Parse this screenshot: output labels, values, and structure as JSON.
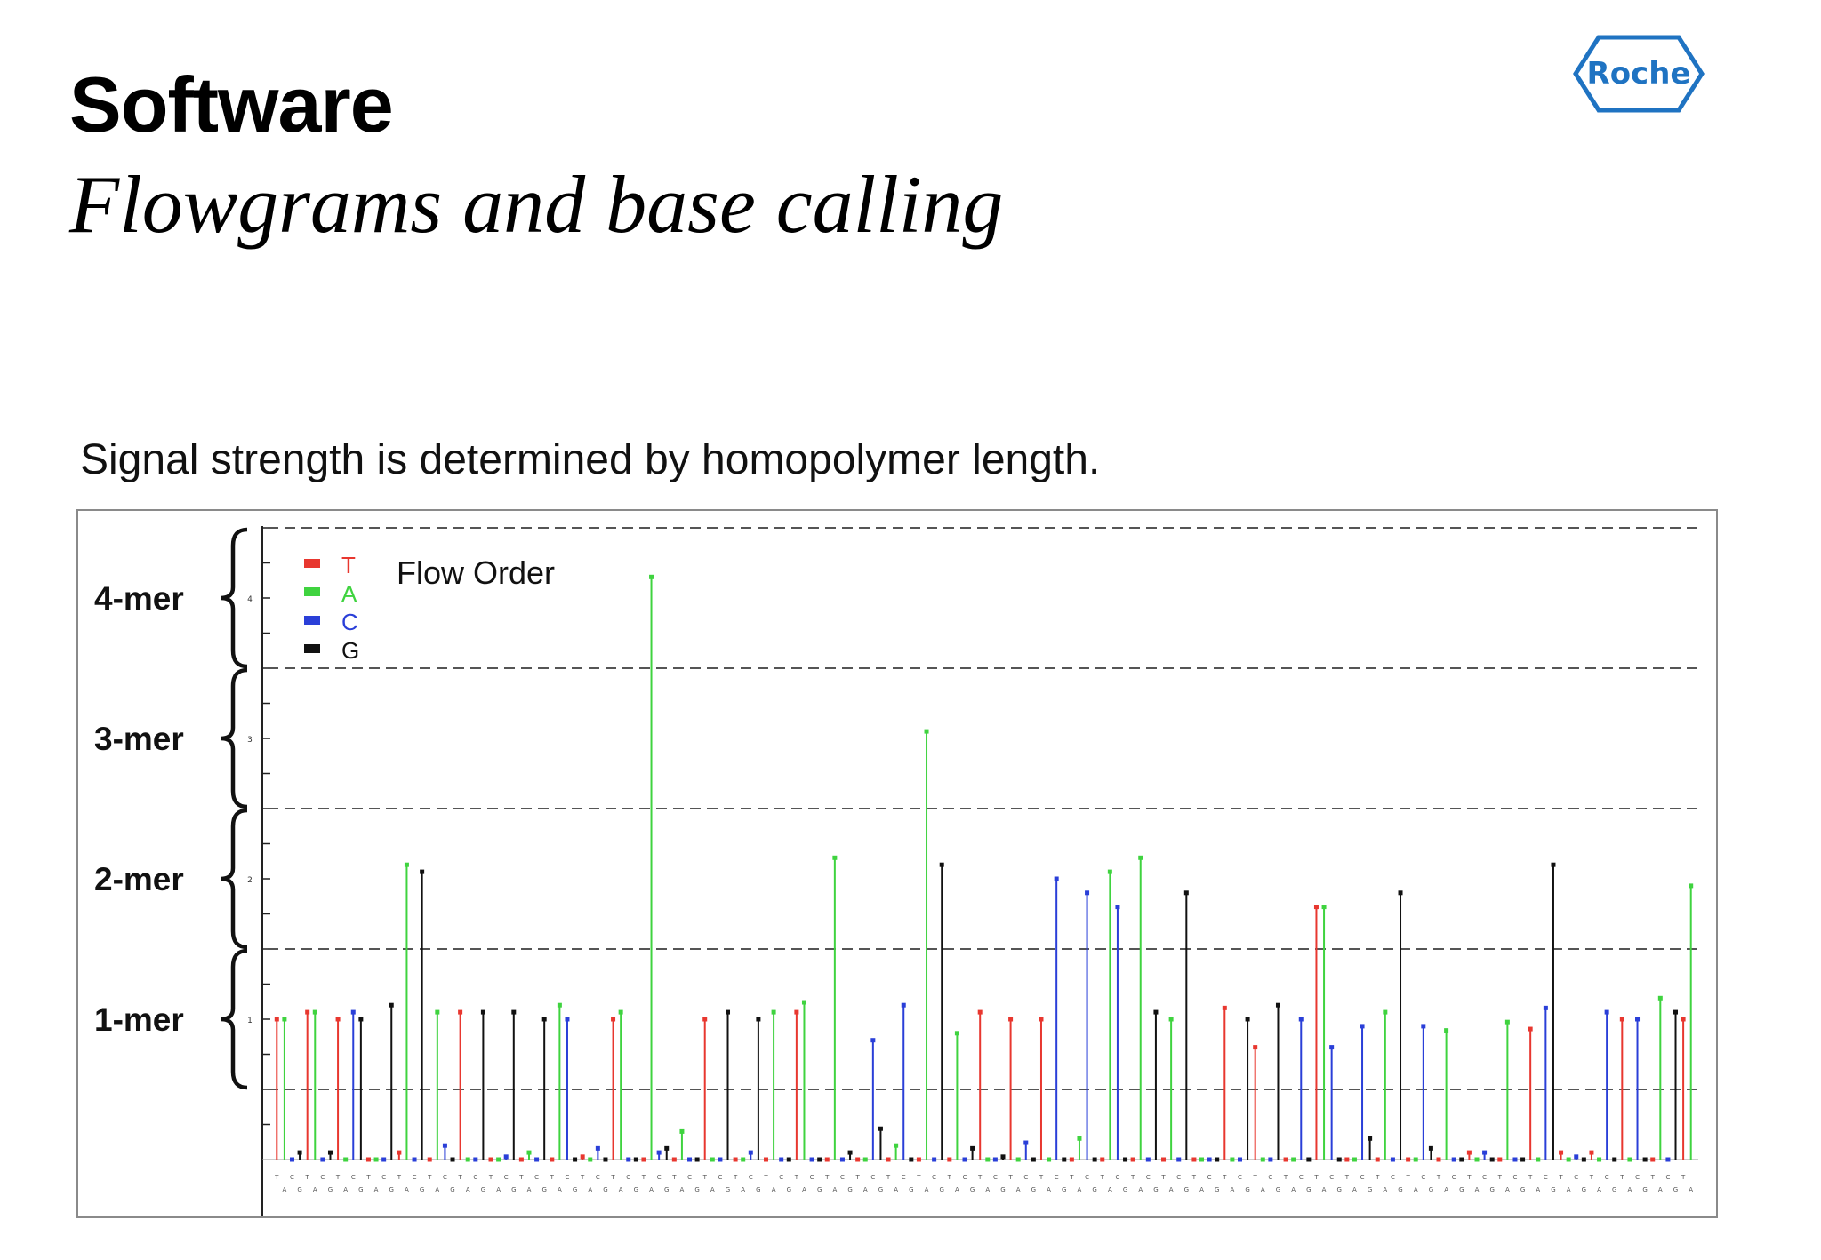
{
  "slide": {
    "title": "Software",
    "subtitle": "Flowgrams and base calling",
    "caption": "Signal strength is determined by homopolymer length.",
    "logo_text": "Roche"
  },
  "colors": {
    "T": "#e8372f",
    "A": "#3fd33f",
    "C": "#2a3fd8",
    "G": "#111111",
    "brand": "#1f73c2"
  },
  "chart_data": {
    "type": "bar",
    "title": "Flow Order",
    "legend": [
      {
        "name": "T",
        "color": "#e8372f"
      },
      {
        "name": "A",
        "color": "#3fd33f"
      },
      {
        "name": "C",
        "color": "#2a3fd8"
      },
      {
        "name": "G",
        "color": "#111111"
      }
    ],
    "legend_position": "top-left",
    "mer_labels": [
      "4-mer",
      "3-mer",
      "2-mer",
      "1-mer"
    ],
    "ytick_labels": [
      "4",
      "3",
      "2",
      "1"
    ],
    "ylim": [
      0,
      4.5
    ],
    "reference_lines": [
      0.5,
      1.5,
      2.5,
      3.5,
      4.5
    ],
    "flow_order": "TACG",
    "values": [
      1.0,
      1.0,
      0.0,
      0.05,
      1.05,
      1.05,
      0.0,
      0.05,
      1.0,
      0.0,
      1.05,
      1.0,
      0.0,
      0.0,
      0.0,
      1.1,
      0.05,
      2.1,
      0.0,
      2.05,
      0.0,
      1.05,
      0.1,
      0.0,
      1.05,
      0.0,
      0.0,
      1.05,
      0.0,
      0.0,
      0.02,
      1.05,
      0.0,
      0.05,
      0.0,
      1.0,
      0.0,
      1.1,
      1.0,
      0.0,
      0.02,
      0.0,
      0.08,
      0.0,
      1.0,
      1.05,
      0.0,
      0.0,
      0.0,
      4.15,
      0.05,
      0.08,
      0.0,
      0.2,
      0.0,
      0.0,
      1.0,
      0.0,
      0.0,
      1.05,
      0.0,
      0.0,
      0.05,
      1.0,
      0.0,
      1.05,
      0.0,
      0.0,
      1.05,
      1.12,
      0.0,
      0.0,
      0.0,
      2.15,
      0.0,
      0.05,
      0.0,
      0.0,
      0.85,
      0.22,
      0.0,
      0.1,
      1.1,
      0.0,
      0.0,
      3.05,
      0.0,
      2.1,
      0.0,
      0.9,
      0.0,
      0.08,
      1.05,
      0.0,
      0.0,
      0.02,
      1.0,
      0.0,
      0.12,
      0.0,
      1.0,
      0.0,
      2.0,
      0.0,
      0.0,
      0.15,
      1.9,
      0.0,
      0.0,
      2.05,
      1.8,
      0.0,
      0.0,
      2.15,
      0.0,
      1.05,
      0.0,
      1.0,
      0.0,
      1.9,
      0.0,
      0.0,
      0.0,
      0.0,
      1.08,
      0.0,
      0.0,
      1.0,
      0.8,
      0.0,
      0.0,
      1.1,
      0.0,
      0.0,
      1.0,
      0.0,
      1.8,
      1.8,
      0.8,
      0.0,
      0.0,
      0.0,
      0.95,
      0.15,
      0.0,
      1.05,
      0.0,
      1.9,
      0.0,
      0.0,
      0.95,
      0.08,
      0.0,
      0.92,
      0.0,
      0.0,
      0.05,
      0.0,
      0.05,
      0.0,
      0.0,
      0.98,
      0.0,
      0.0,
      0.93,
      0.0,
      1.08,
      2.1,
      0.05,
      0.0,
      0.02,
      0.0,
      0.05,
      0.0,
      1.05,
      0.0,
      1.0,
      0.0,
      1.0,
      0.0,
      0.0,
      1.15,
      0.0,
      1.05,
      1.0,
      1.95
    ]
  }
}
